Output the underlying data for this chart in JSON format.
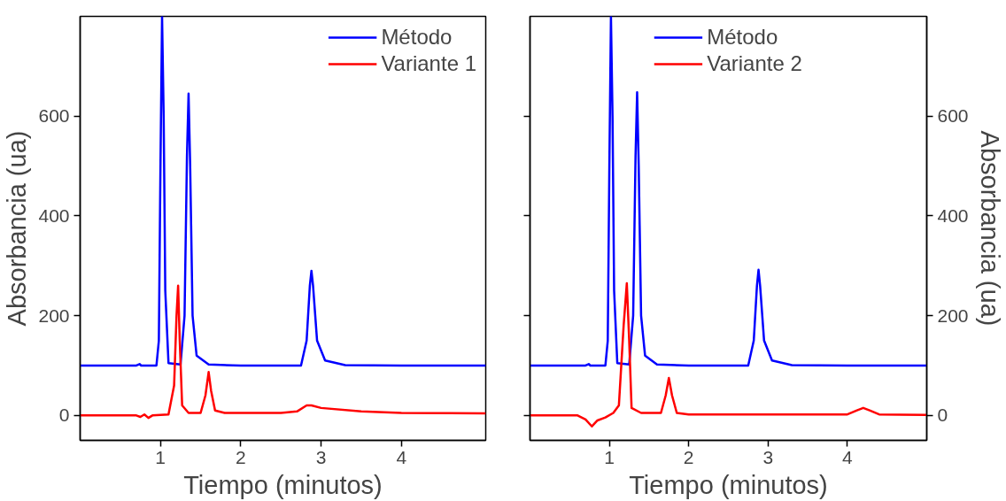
{
  "chart_data": [
    {
      "type": "line",
      "xlabel": "Tiempo (minutos)",
      "ylabel": "Absorbancia (ua)",
      "xlim": [
        0,
        5.05
      ],
      "xticks": [
        1,
        2,
        3,
        4
      ],
      "ylim": [
        -50,
        800
      ],
      "yticks": [
        0,
        200,
        400,
        600
      ],
      "grid": false,
      "legend": "top right",
      "line_style": "solid",
      "marker": "none",
      "series": [
        {
          "name": "Método",
          "color": "#0000ff",
          "x": [
            0,
            0.7,
            0.74,
            0.76,
            0.8,
            0.95,
            0.98,
            1.0,
            1.02,
            1.04,
            1.06,
            1.1,
            1.25,
            1.3,
            1.33,
            1.35,
            1.37,
            1.4,
            1.45,
            1.6,
            2.0,
            2.75,
            2.82,
            2.86,
            2.88,
            2.9,
            2.95,
            3.05,
            3.3,
            4,
            5.05
          ],
          "values": [
            100,
            100,
            103,
            100,
            100,
            100,
            150,
            500,
            800,
            600,
            250,
            105,
            102,
            200,
            520,
            645,
            500,
            200,
            120,
            102,
            100,
            100,
            150,
            260,
            290,
            260,
            150,
            110,
            101,
            100,
            100
          ]
        },
        {
          "name": "Variante 1",
          "color": "#ff0000",
          "x": [
            0,
            0.7,
            0.75,
            0.8,
            0.85,
            0.9,
            1.1,
            1.17,
            1.2,
            1.22,
            1.24,
            1.27,
            1.35,
            1.5,
            1.56,
            1.6,
            1.63,
            1.68,
            1.8,
            2.5,
            2.7,
            2.82,
            2.88,
            3.0,
            3.5,
            4,
            5.05
          ],
          "values": [
            0,
            0,
            -3,
            2,
            -5,
            0,
            2,
            60,
            200,
            260,
            150,
            20,
            5,
            5,
            40,
            87,
            50,
            10,
            5,
            5,
            8,
            20,
            20,
            15,
            8,
            5,
            4
          ]
        }
      ]
    },
    {
      "type": "line",
      "xlabel": "Tiempo (minutos)",
      "y2label": "Absorbancia (ua)",
      "xlim": [
        0,
        5.0
      ],
      "xticks": [
        1,
        2,
        3,
        4
      ],
      "y2lim": [
        -50,
        800
      ],
      "y2ticks": [
        0,
        200,
        400,
        600
      ],
      "grid": false,
      "legend": "top",
      "line_style": "solid",
      "marker": "none",
      "series": [
        {
          "name": "Método",
          "color": "#0000ff",
          "axis": "y2",
          "x": [
            0,
            0.7,
            0.74,
            0.76,
            0.8,
            0.95,
            0.98,
            1.0,
            1.02,
            1.04,
            1.06,
            1.1,
            1.25,
            1.3,
            1.33,
            1.35,
            1.37,
            1.4,
            1.45,
            1.6,
            2.0,
            2.75,
            2.82,
            2.86,
            2.88,
            2.9,
            2.95,
            3.05,
            3.3,
            4,
            5.0
          ],
          "values": [
            100,
            100,
            103,
            100,
            100,
            100,
            150,
            500,
            800,
            600,
            250,
            105,
            102,
            200,
            520,
            648,
            500,
            200,
            120,
            102,
            100,
            100,
            150,
            260,
            292,
            260,
            150,
            110,
            101,
            100,
            100
          ]
        },
        {
          "name": "Variante 2",
          "color": "#ff0000",
          "axis": "y2",
          "x": [
            0,
            0.6,
            0.7,
            0.78,
            0.85,
            0.95,
            1.05,
            1.12,
            1.18,
            1.22,
            1.25,
            1.28,
            1.4,
            1.65,
            1.71,
            1.75,
            1.79,
            1.85,
            2.0,
            4.0,
            4.12,
            4.2,
            4.28,
            4.4,
            5.0
          ],
          "values": [
            0,
            0,
            -8,
            -22,
            -10,
            -4,
            5,
            20,
            180,
            265,
            150,
            15,
            5,
            5,
            40,
            75,
            40,
            5,
            2,
            2,
            10,
            15,
            10,
            2,
            1
          ]
        }
      ]
    }
  ]
}
